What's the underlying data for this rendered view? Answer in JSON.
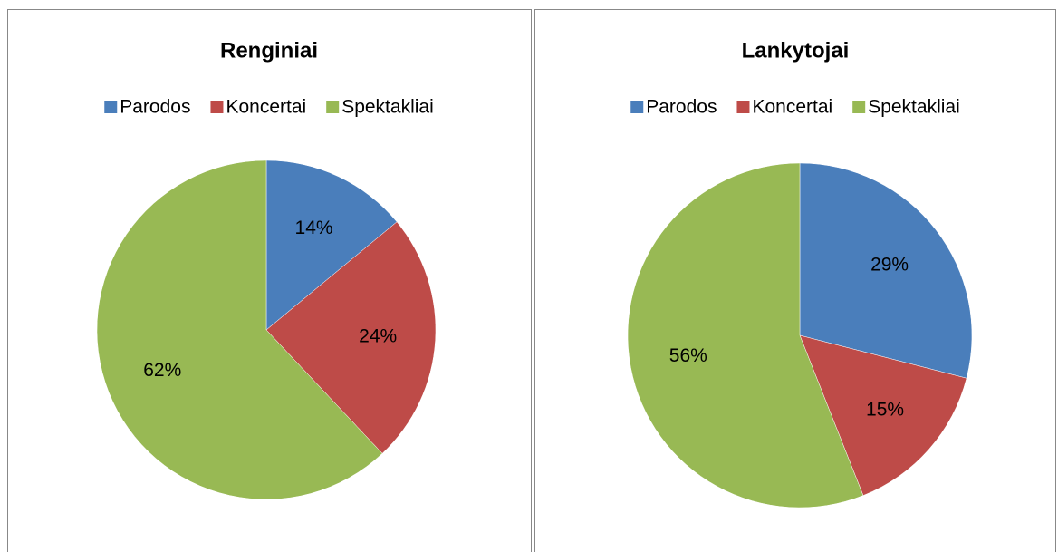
{
  "chart_data": [
    {
      "type": "pie",
      "title": "Renginiai",
      "categories": [
        "Parodos",
        "Koncertai",
        "Spektakliai"
      ],
      "values": [
        14,
        24,
        62
      ],
      "value_labels": [
        "14%",
        "24%",
        "62%"
      ],
      "colors": [
        "#4a7ebb",
        "#be4b48",
        "#98b954"
      ],
      "legend": "top"
    },
    {
      "type": "pie",
      "title": "Lankytojai",
      "categories": [
        "Parodos",
        "Koncertai",
        "Spektakliai"
      ],
      "values": [
        29,
        15,
        56
      ],
      "value_labels": [
        "29%",
        "15%",
        "56%"
      ],
      "colors": [
        "#4a7ebb",
        "#be4b48",
        "#98b954"
      ],
      "legend": "top"
    }
  ]
}
